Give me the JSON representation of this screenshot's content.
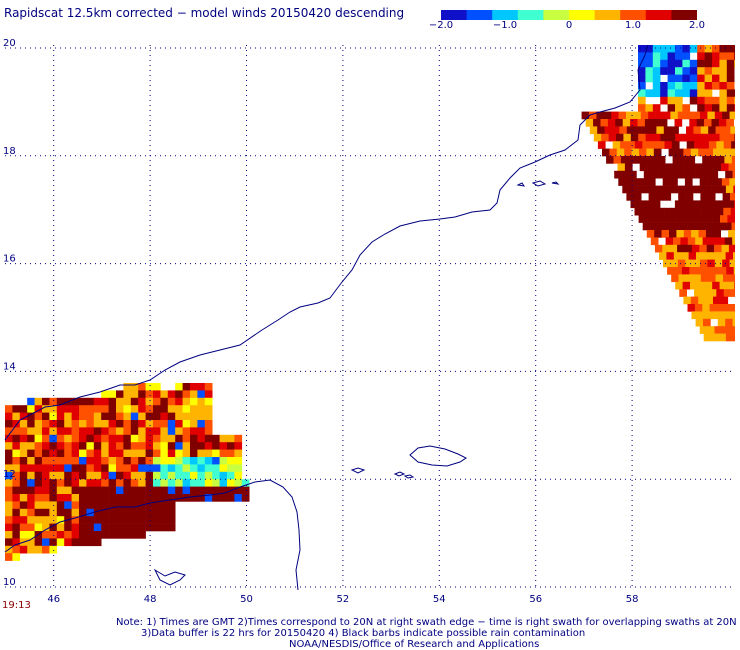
{
  "title": "Rapidscat 12.5km corrected − model winds 20150420 descending",
  "colorbar": {
    "min": -2.0,
    "max": 2.0,
    "tick_values": [
      -2.0,
      -1.0,
      0,
      1.0,
      2.0
    ],
    "tick_labels": [
      "−2.0",
      "−1.0",
      "0",
      "1.0",
      "2.0"
    ],
    "colors": [
      "#1010c8",
      "#0050ff",
      "#00c8ff",
      "#40ffd0",
      "#c8ff40",
      "#ffff00",
      "#ffb400",
      "#ff5000",
      "#e00000",
      "#800000"
    ]
  },
  "map": {
    "lon_range": [
      45.0,
      60.0
    ],
    "lat_range": [
      10.0,
      20.0
    ],
    "x_ticks": [
      46,
      48,
      50,
      52,
      54,
      56,
      58
    ],
    "x_tick_labels": [
      "46",
      "48",
      "50",
      "52",
      "54",
      "56",
      "58"
    ],
    "y_ticks": [
      10,
      12,
      14,
      16,
      18,
      20
    ],
    "y_tick_labels": [
      "10",
      "12",
      "14",
      "16",
      "18",
      "20"
    ],
    "gridlines": true,
    "coastline_color": "#000080"
  },
  "time_label": "19:13",
  "notes": {
    "line1": "Note: 1) Times are GMT 2)Times correspond to 20N at right swath edge − time is right swath for overlapping swaths at 20N",
    "line2": "3)Data buffer is 22 hrs for 20150420 4) Black barbs indicate possible rain contamination",
    "line3": "NOAA/NESDIS/Office of Research and Applications"
  }
}
